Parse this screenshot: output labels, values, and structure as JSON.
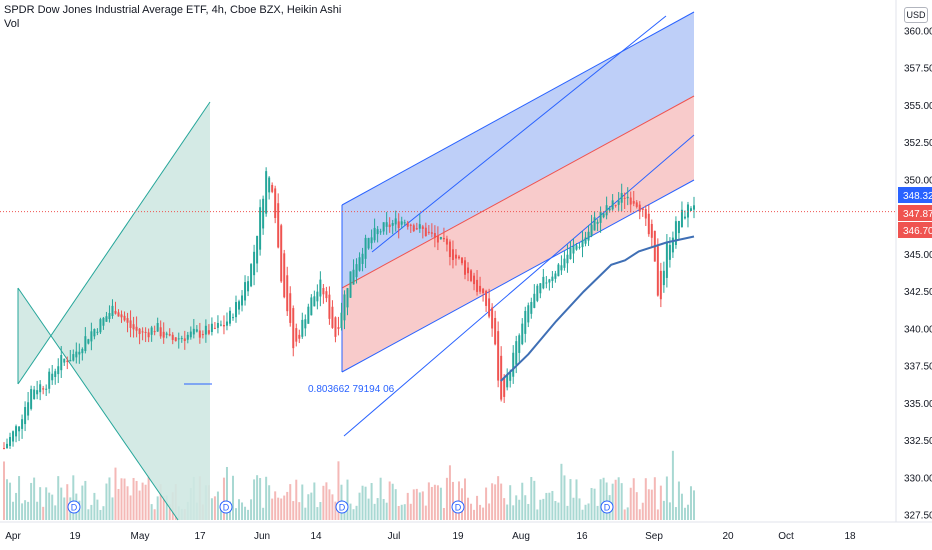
{
  "header": {
    "title": "SPDR Dow Jones Industrial Average ETF, 4h, Cboe BZX, Heikin Ashi",
    "vol_label": "Vol"
  },
  "currency": "USD",
  "colors": {
    "up": "#26a69a",
    "down": "#ef5350",
    "ma": "#3f6fb5",
    "trendline": "#2962ff",
    "channel_upper_fill": "#b3c7f7",
    "channel_lower_fill": "#f7c2c2",
    "triangle_fill": "#cfe8e2",
    "triangle_line": "#26a69a",
    "price_line": "#ef5350"
  },
  "fib_label": "0.803662",
  "fib_label_tail": "79194 06",
  "price_tags": [
    {
      "value": "348.32",
      "color": "#2962ff"
    },
    {
      "value": "347.87",
      "color": "#ef5350"
    },
    {
      "value": "346.70",
      "color": "#ef5350"
    }
  ],
  "dividend_marker": "D",
  "chart_data": {
    "type": "candlestick",
    "title": "SPDR Dow Jones Industrial Average ETF, 4h, Cboe BZX, Heikin Ashi",
    "ylim": [
      327.5,
      361.5
    ],
    "y_ticks": [
      "360.00",
      "357.50",
      "355.00",
      "352.50",
      "350.00",
      "347.50",
      "345.00",
      "342.50",
      "340.00",
      "337.50",
      "335.00",
      "332.50",
      "330.00",
      "327.50"
    ],
    "x_ticks": [
      "Apr",
      "19",
      "May",
      "17",
      "Jun",
      "14",
      "Jul",
      "19",
      "Aug",
      "16",
      "Sep",
      "20",
      "Oct",
      "18"
    ],
    "last_price": 347.87,
    "dividend_dates": [
      "Apr 22",
      "May 20",
      "Jun 18",
      "Jul 19",
      "Aug 20"
    ],
    "close_series": [
      [
        0,
        332.0
      ],
      [
        0.02,
        333.5
      ],
      [
        0.04,
        336.0
      ],
      [
        0.06,
        336.3
      ],
      [
        0.08,
        337.8
      ],
      [
        0.1,
        338.2
      ],
      [
        0.12,
        339.5
      ],
      [
        0.14,
        340.4
      ],
      [
        0.16,
        341.5
      ],
      [
        0.18,
        340.2
      ],
      [
        0.2,
        339.6
      ],
      [
        0.22,
        340.1
      ],
      [
        0.24,
        339.2
      ],
      [
        0.26,
        339.5
      ],
      [
        0.28,
        339.7
      ],
      [
        0.3,
        339.9
      ],
      [
        0.32,
        340.3
      ],
      [
        0.34,
        341.8
      ],
      [
        0.36,
        344.5
      ],
      [
        0.37,
        347.5
      ],
      [
        0.38,
        350.5
      ],
      [
        0.39,
        349.5
      ],
      [
        0.4,
        344.0
      ],
      [
        0.41,
        341.5
      ],
      [
        0.42,
        338.5
      ],
      [
        0.44,
        341.5
      ],
      [
        0.46,
        343.0
      ],
      [
        0.48,
        339.5
      ],
      [
        0.5,
        343.5
      ],
      [
        0.52,
        345.5
      ],
      [
        0.54,
        346.5
      ],
      [
        0.56,
        347.0
      ],
      [
        0.58,
        347.3
      ],
      [
        0.6,
        346.8
      ],
      [
        0.62,
        346.2
      ],
      [
        0.64,
        345.5
      ],
      [
        0.66,
        344.5
      ],
      [
        0.68,
        343.2
      ],
      [
        0.7,
        341.5
      ],
      [
        0.71,
        339.5
      ],
      [
        0.72,
        335.0
      ],
      [
        0.74,
        338.5
      ],
      [
        0.76,
        341.5
      ],
      [
        0.78,
        343.0
      ],
      [
        0.8,
        344.0
      ],
      [
        0.82,
        345.2
      ],
      [
        0.84,
        346.0
      ],
      [
        0.86,
        347.5
      ],
      [
        0.88,
        348.2
      ],
      [
        0.9,
        349.0
      ],
      [
        0.92,
        348.5
      ],
      [
        0.94,
        345.5
      ],
      [
        0.95,
        341.5
      ],
      [
        0.96,
        345.5
      ],
      [
        0.98,
        347.5
      ],
      [
        1.0,
        348.5
      ]
    ],
    "ma_series": [
      [
        0.72,
        336.5
      ],
      [
        0.76,
        338.3
      ],
      [
        0.8,
        340.5
      ],
      [
        0.84,
        342.5
      ],
      [
        0.88,
        344.3
      ],
      [
        0.9,
        344.6
      ],
      [
        0.92,
        345.2
      ],
      [
        0.96,
        345.8
      ],
      [
        1.0,
        346.2
      ]
    ],
    "volume_note": "volume histogram at bottom, values not labeled"
  }
}
